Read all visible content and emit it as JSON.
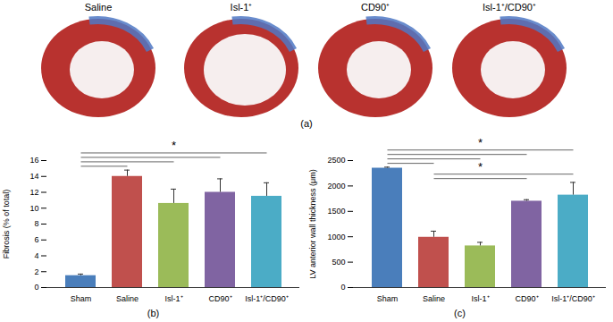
{
  "panel_a": {
    "label": "(a)",
    "images": [
      "Saline",
      "Isl-1⁺",
      "CD90⁺",
      "Isl-1⁺/CD90⁺"
    ]
  },
  "chart_data": [
    {
      "type": "bar",
      "title": "(b)",
      "ylabel": "Fibrosis (% of total)",
      "categories": [
        "Sham",
        "Saline",
        "Isl-1⁺",
        "CD90⁺",
        "Isl-1⁺/CD90⁺"
      ],
      "values": [
        1.5,
        14,
        10.6,
        12,
        11.5
      ],
      "errors": [
        0.2,
        0.8,
        1.8,
        1.7,
        1.7
      ],
      "colors": [
        "#4a7ebb",
        "#c0504d",
        "#9bbb59",
        "#8064a2",
        "#4bacc6"
      ],
      "ylim": [
        0,
        16
      ],
      "yticks": [
        0,
        2,
        4,
        6,
        8,
        10,
        12,
        14,
        16
      ],
      "significance": [
        {
          "label": "*",
          "pairs": [
            [
              "Sham",
              "Saline"
            ],
            [
              "Sham",
              "Isl-1⁺"
            ],
            [
              "Sham",
              "CD90⁺"
            ],
            [
              "Sham",
              "Isl-1⁺/CD90⁺"
            ]
          ]
        }
      ]
    },
    {
      "type": "bar",
      "title": "(c)",
      "ylabel": "LV anterior wall thickness (μm)",
      "categories": [
        "Sham",
        "Saline",
        "Isl-1⁺",
        "CD90⁺",
        "Isl-1⁺/CD90⁺"
      ],
      "values": [
        2350,
        990,
        820,
        1700,
        1820
      ],
      "errors": [
        20,
        120,
        70,
        30,
        250
      ],
      "colors": [
        "#4a7ebb",
        "#c0504d",
        "#9bbb59",
        "#8064a2",
        "#4bacc6"
      ],
      "ylim": [
        0,
        2500
      ],
      "yticks": [
        0,
        500,
        1000,
        1500,
        2000,
        2500
      ],
      "significance": [
        {
          "label": "*",
          "pairs": [
            [
              "Sham",
              "Saline"
            ],
            [
              "Sham",
              "Isl-1⁺"
            ],
            [
              "Sham",
              "CD90⁺"
            ],
            [
              "Sham",
              "Isl-1⁺/CD90⁺"
            ]
          ]
        },
        {
          "label": "*",
          "pairs": [
            [
              "Saline",
              "CD90⁺"
            ],
            [
              "Saline",
              "Isl-1⁺/CD90⁺"
            ]
          ]
        }
      ]
    }
  ]
}
